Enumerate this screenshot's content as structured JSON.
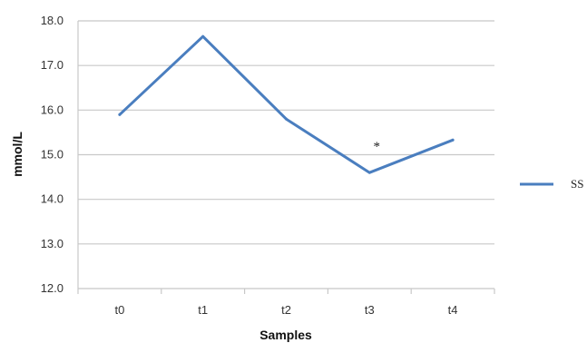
{
  "chart_data": {
    "type": "line",
    "categories": [
      "t0",
      "t1",
      "t2",
      "t3",
      "t4"
    ],
    "series": [
      {
        "name": "SS",
        "values": [
          15.9,
          17.65,
          15.8,
          14.6,
          15.33
        ],
        "color": "#4a7ebf"
      }
    ],
    "xlabel": "Samples",
    "ylabel": "mmol/L",
    "ylim": [
      12.0,
      18.0
    ],
    "yticks": [
      "12.0",
      "13.0",
      "14.0",
      "15.0",
      "16.0",
      "17.0",
      "18.0"
    ],
    "grid": true,
    "legend_position": "right",
    "annotations": [
      {
        "text": "*",
        "category": "t3",
        "y": 15.25
      }
    ]
  }
}
